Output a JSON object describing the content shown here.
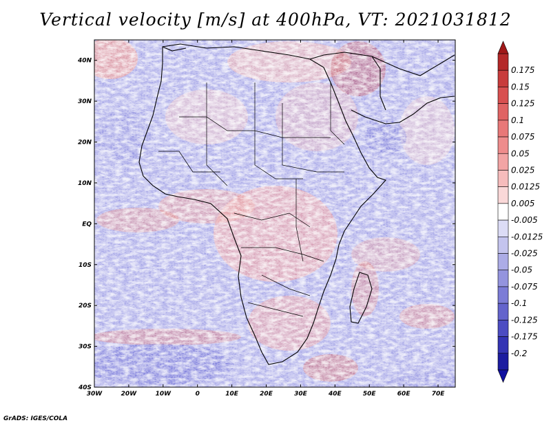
{
  "title": "Vertical velocity [m/s] at 400hPa, VT: 2021031812",
  "footer": "GrADS: IGES/COLA",
  "map": {
    "variable": "Vertical velocity",
    "units": "m/s",
    "level": "400hPa",
    "valid_time": "2021031812",
    "lat_labels": [
      "40N",
      "30N",
      "20N",
      "10N",
      "EQ",
      "10S",
      "20S",
      "30S",
      "40S"
    ],
    "lat_values": [
      40,
      30,
      20,
      10,
      0,
      -10,
      -20,
      -30,
      -40
    ],
    "lon_labels": [
      "30W",
      "20W",
      "10W",
      "0",
      "10E",
      "20E",
      "30E",
      "40E",
      "50E",
      "60E",
      "70E"
    ],
    "lon_values": [
      -30,
      -20,
      -10,
      0,
      10,
      20,
      30,
      40,
      50,
      60,
      70
    ]
  },
  "colorbar": {
    "labels": [
      "0.175",
      "0.15",
      "0.125",
      "0.1",
      "0.075",
      "0.05",
      "0.025",
      "0.0125",
      "0.005",
      "-0.005",
      "-0.0125",
      "-0.025",
      "-0.05",
      "-0.075",
      "-0.1",
      "-0.125",
      "-0.175",
      "-0.2"
    ],
    "colors": [
      "#b42828",
      "#c83c3c",
      "#d85050",
      "#e06464",
      "#e87878",
      "#ee8c8c",
      "#f2a4a4",
      "#f6bcbc",
      "#fad8d8",
      "#ffffff",
      "#dcdcf6",
      "#c4c4ee",
      "#acace6",
      "#9494de",
      "#7c7cd6",
      "#6464cc",
      "#4c4cc2",
      "#3434b4",
      "#1c1ca0"
    ]
  }
}
